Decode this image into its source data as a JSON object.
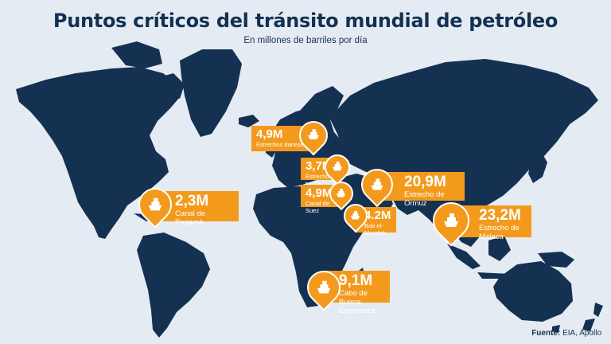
{
  "title": "Puntos críticos del tránsito mundial de petróleo",
  "subtitle": "En millones de barriles por día",
  "source_label": "Fuente:",
  "source_text": "EIA, Apollo",
  "colors": {
    "land": "#143152",
    "ocean": "#e5ebf2",
    "callout": "#f39a1d",
    "text": "#ffffff"
  },
  "chokepoints": [
    {
      "value": "4,9M",
      "name": "Estrechos daneses",
      "icon": "tanker-ship-icon"
    },
    {
      "value": "3,7M",
      "name": "Estrechos turcos",
      "icon": "tanker-ship-icon"
    },
    {
      "value": "4,9M",
      "name": "Canal de Suez",
      "icon": "tanker-ship-icon"
    },
    {
      "value": "20,9M",
      "name": "Estrecho de Ormuz",
      "icon": "tanker-ship-icon"
    },
    {
      "value": "4.2M",
      "name": "Bab el-Mandeb",
      "icon": "tanker-ship-icon"
    },
    {
      "value": "23,2M",
      "name": "Estrecho de Malaca",
      "icon": "tanker-ship-icon"
    },
    {
      "value": "2,3M",
      "name": "Canal de Panamá",
      "icon": "tanker-ship-icon"
    },
    {
      "value": "9,1M",
      "name": "Cabo de Buena Esperanza",
      "icon": "tanker-ship-icon"
    }
  ]
}
